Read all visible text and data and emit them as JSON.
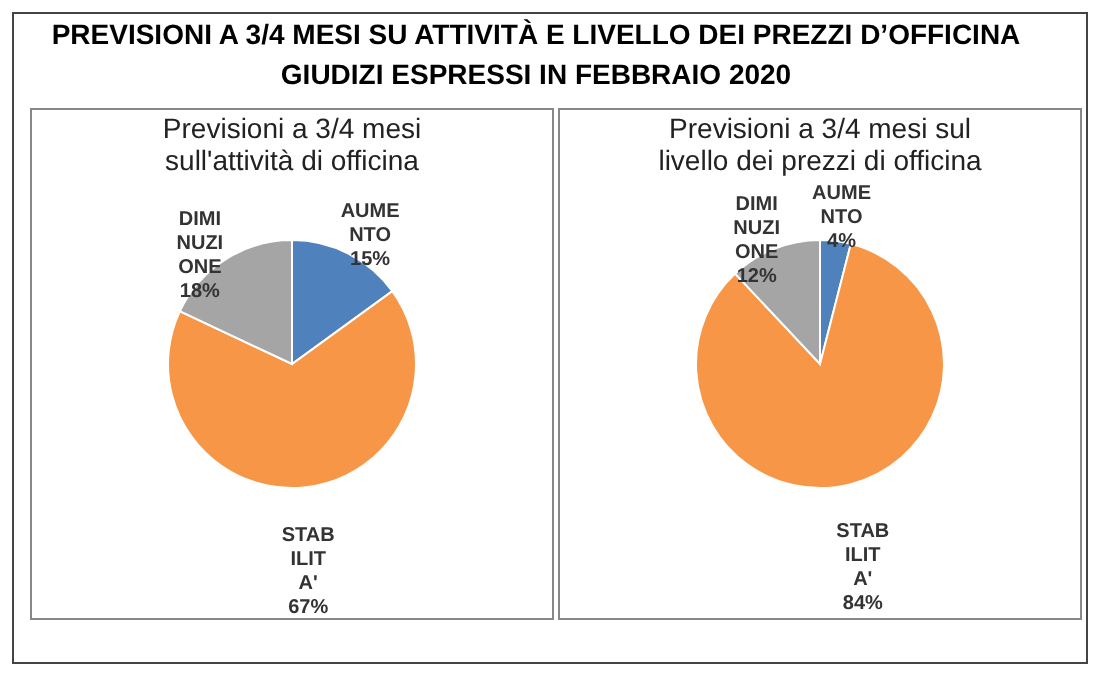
{
  "chart_data": [
    {
      "type": "other",
      "title": "PREVISIONI A 3/4 MESI SU ATTIVITÀ E LIVELLO DEI PREZZI D’OFFICINA",
      "subtitle": "GIUDIZI ESPRESSI IN FEBBRAIO 2020"
    },
    {
      "type": "pie",
      "title": "Previsioni a 3/4 mesi sull'attività di officina",
      "categories": [
        "AUMENTO",
        "STABILITA'",
        "DIMINUZIONE"
      ],
      "values": [
        15,
        67,
        18
      ],
      "colors": [
        "#4f81bd",
        "#f79646",
        "#a5a5a5"
      ],
      "value_labels": [
        "15%",
        "67%",
        "18%"
      ],
      "legend": false
    },
    {
      "type": "pie",
      "title": "Previsioni a 3/4 mesi sul livello dei prezzi di officina",
      "categories": [
        "AUMENTO",
        "STABILITA'",
        "DIMINUZIONE"
      ],
      "values": [
        4,
        84,
        12
      ],
      "colors": [
        "#4f81bd",
        "#f79646",
        "#a5a5a5"
      ],
      "value_labels": [
        "4%",
        "84%",
        "12%"
      ],
      "legend": false
    }
  ]
}
